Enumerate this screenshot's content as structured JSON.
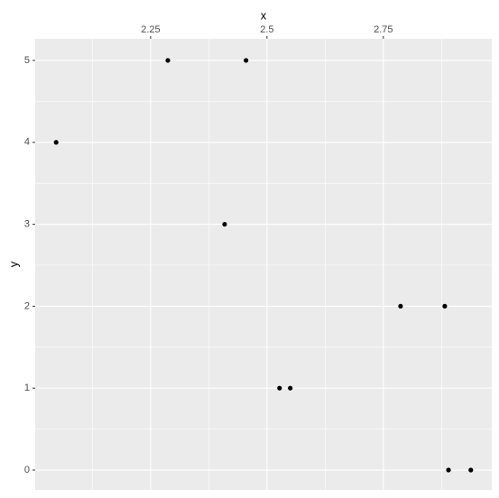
{
  "chart_data": {
    "type": "scatter",
    "x_label": "x",
    "y_label": "y",
    "x": [
      2.047,
      2.287,
      2.455,
      2.409,
      2.527,
      2.55,
      2.787,
      2.882,
      2.89,
      2.938
    ],
    "values": [
      4,
      5,
      5,
      3,
      1,
      1,
      2,
      2,
      0,
      0
    ],
    "color": "#000000",
    "xlim": [
      2.002,
      2.983
    ],
    "xticks": [
      2.25,
      2.5,
      2.75
    ],
    "ylim": [
      -0.242,
      5.264
    ],
    "yticks": [
      0,
      1,
      2,
      3,
      4,
      5
    ],
    "x_minor_ticks": [
      2.125,
      2.375,
      2.625,
      2.875
    ],
    "y_minor_ticks": [
      0.5,
      1.5,
      2.5,
      3.5,
      4.5
    ],
    "x_axis_position": "top",
    "grid": true
  }
}
